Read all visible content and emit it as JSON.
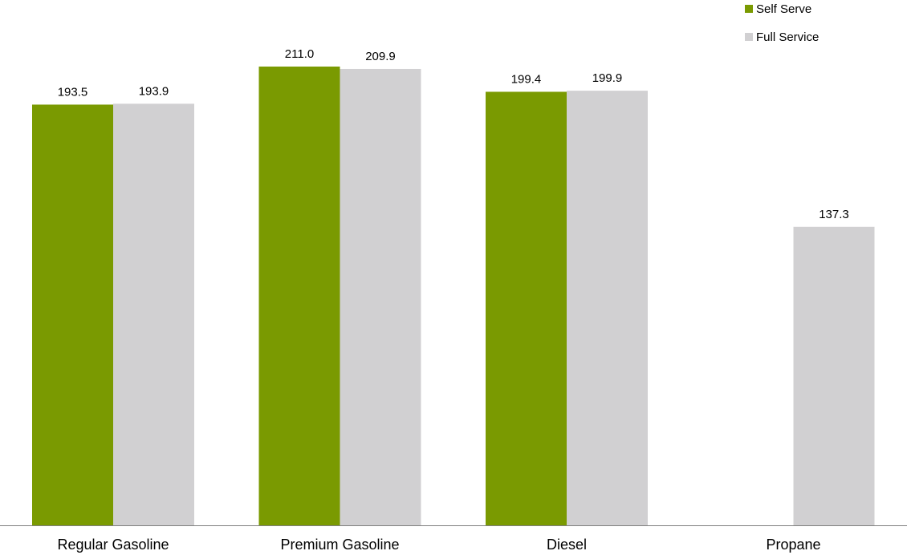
{
  "chart_data": {
    "type": "bar",
    "categories": [
      "Regular Gasoline",
      "Premium Gasoline",
      "Diesel",
      "Propane"
    ],
    "series": [
      {
        "name": "Self Serve",
        "color": "#7a9a01",
        "values": [
          193.5,
          211.0,
          199.4,
          null
        ],
        "labels": [
          "193.5",
          "211.0",
          "199.4",
          ""
        ]
      },
      {
        "name": "Full Service",
        "color": "#d1d0d2",
        "values": [
          193.9,
          209.9,
          199.9,
          137.3
        ],
        "labels": [
          "193.9",
          "209.9",
          "199.9",
          "137.3"
        ]
      }
    ],
    "title": "",
    "xlabel": "",
    "ylabel": "",
    "ylim": [
      0,
      220
    ],
    "grid": false,
    "legend_position": "top-right",
    "axis_color": "#7f7f7f"
  }
}
